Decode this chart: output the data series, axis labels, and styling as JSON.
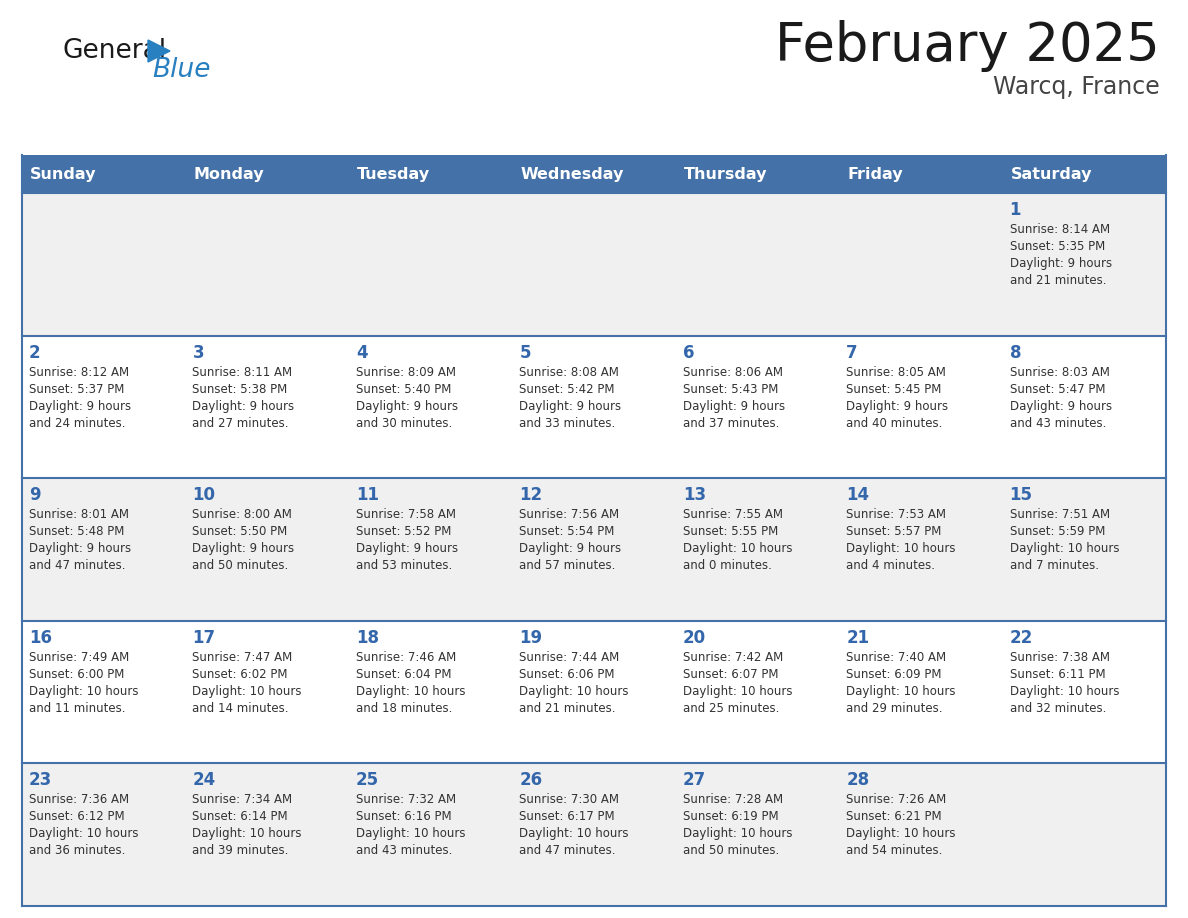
{
  "title": "February 2025",
  "subtitle": "Warcq, France",
  "days_of_week": [
    "Sunday",
    "Monday",
    "Tuesday",
    "Wednesday",
    "Thursday",
    "Friday",
    "Saturday"
  ],
  "header_bg": "#4472a8",
  "header_text": "#ffffff",
  "row_bg_odd": "#f0f0f0",
  "row_bg_even": "#ffffff",
  "day_number_color": "#3366aa",
  "cell_text_color": "#333333",
  "border_color": "#4472a8",
  "title_color": "#1a1a1a",
  "subtitle_color": "#444444",
  "logo_general_color": "#1a1a1a",
  "logo_blue_color": "#2980c0",
  "weeks": [
    [
      {
        "day": null,
        "info": null
      },
      {
        "day": null,
        "info": null
      },
      {
        "day": null,
        "info": null
      },
      {
        "day": null,
        "info": null
      },
      {
        "day": null,
        "info": null
      },
      {
        "day": null,
        "info": null
      },
      {
        "day": 1,
        "info": "Sunrise: 8:14 AM\nSunset: 5:35 PM\nDaylight: 9 hours\nand 21 minutes."
      }
    ],
    [
      {
        "day": 2,
        "info": "Sunrise: 8:12 AM\nSunset: 5:37 PM\nDaylight: 9 hours\nand 24 minutes."
      },
      {
        "day": 3,
        "info": "Sunrise: 8:11 AM\nSunset: 5:38 PM\nDaylight: 9 hours\nand 27 minutes."
      },
      {
        "day": 4,
        "info": "Sunrise: 8:09 AM\nSunset: 5:40 PM\nDaylight: 9 hours\nand 30 minutes."
      },
      {
        "day": 5,
        "info": "Sunrise: 8:08 AM\nSunset: 5:42 PM\nDaylight: 9 hours\nand 33 minutes."
      },
      {
        "day": 6,
        "info": "Sunrise: 8:06 AM\nSunset: 5:43 PM\nDaylight: 9 hours\nand 37 minutes."
      },
      {
        "day": 7,
        "info": "Sunrise: 8:05 AM\nSunset: 5:45 PM\nDaylight: 9 hours\nand 40 minutes."
      },
      {
        "day": 8,
        "info": "Sunrise: 8:03 AM\nSunset: 5:47 PM\nDaylight: 9 hours\nand 43 minutes."
      }
    ],
    [
      {
        "day": 9,
        "info": "Sunrise: 8:01 AM\nSunset: 5:48 PM\nDaylight: 9 hours\nand 47 minutes."
      },
      {
        "day": 10,
        "info": "Sunrise: 8:00 AM\nSunset: 5:50 PM\nDaylight: 9 hours\nand 50 minutes."
      },
      {
        "day": 11,
        "info": "Sunrise: 7:58 AM\nSunset: 5:52 PM\nDaylight: 9 hours\nand 53 minutes."
      },
      {
        "day": 12,
        "info": "Sunrise: 7:56 AM\nSunset: 5:54 PM\nDaylight: 9 hours\nand 57 minutes."
      },
      {
        "day": 13,
        "info": "Sunrise: 7:55 AM\nSunset: 5:55 PM\nDaylight: 10 hours\nand 0 minutes."
      },
      {
        "day": 14,
        "info": "Sunrise: 7:53 AM\nSunset: 5:57 PM\nDaylight: 10 hours\nand 4 minutes."
      },
      {
        "day": 15,
        "info": "Sunrise: 7:51 AM\nSunset: 5:59 PM\nDaylight: 10 hours\nand 7 minutes."
      }
    ],
    [
      {
        "day": 16,
        "info": "Sunrise: 7:49 AM\nSunset: 6:00 PM\nDaylight: 10 hours\nand 11 minutes."
      },
      {
        "day": 17,
        "info": "Sunrise: 7:47 AM\nSunset: 6:02 PM\nDaylight: 10 hours\nand 14 minutes."
      },
      {
        "day": 18,
        "info": "Sunrise: 7:46 AM\nSunset: 6:04 PM\nDaylight: 10 hours\nand 18 minutes."
      },
      {
        "day": 19,
        "info": "Sunrise: 7:44 AM\nSunset: 6:06 PM\nDaylight: 10 hours\nand 21 minutes."
      },
      {
        "day": 20,
        "info": "Sunrise: 7:42 AM\nSunset: 6:07 PM\nDaylight: 10 hours\nand 25 minutes."
      },
      {
        "day": 21,
        "info": "Sunrise: 7:40 AM\nSunset: 6:09 PM\nDaylight: 10 hours\nand 29 minutes."
      },
      {
        "day": 22,
        "info": "Sunrise: 7:38 AM\nSunset: 6:11 PM\nDaylight: 10 hours\nand 32 minutes."
      }
    ],
    [
      {
        "day": 23,
        "info": "Sunrise: 7:36 AM\nSunset: 6:12 PM\nDaylight: 10 hours\nand 36 minutes."
      },
      {
        "day": 24,
        "info": "Sunrise: 7:34 AM\nSunset: 6:14 PM\nDaylight: 10 hours\nand 39 minutes."
      },
      {
        "day": 25,
        "info": "Sunrise: 7:32 AM\nSunset: 6:16 PM\nDaylight: 10 hours\nand 43 minutes."
      },
      {
        "day": 26,
        "info": "Sunrise: 7:30 AM\nSunset: 6:17 PM\nDaylight: 10 hours\nand 47 minutes."
      },
      {
        "day": 27,
        "info": "Sunrise: 7:28 AM\nSunset: 6:19 PM\nDaylight: 10 hours\nand 50 minutes."
      },
      {
        "day": 28,
        "info": "Sunrise: 7:26 AM\nSunset: 6:21 PM\nDaylight: 10 hours\nand 54 minutes."
      },
      {
        "day": null,
        "info": null
      }
    ]
  ]
}
